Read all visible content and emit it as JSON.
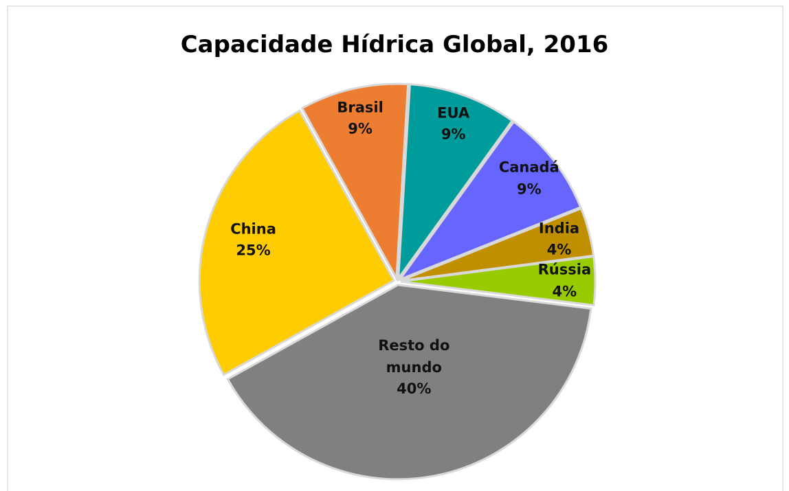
{
  "chart_data": {
    "type": "pie",
    "title": "Capacidade Hídrica Global, 2016",
    "categories": [
      "Brasil",
      "EUA",
      "Canadá",
      "India",
      "Rússia",
      "Resto do mundo",
      "China"
    ],
    "values": [
      9,
      9,
      9,
      4,
      4,
      40,
      25
    ],
    "value_labels": [
      "9%",
      "9%",
      "9%",
      "4%",
      "4%",
      "40%",
      "25%"
    ],
    "colors": [
      "#ED7D31",
      "#009B9B",
      "#6666FF",
      "#BF8F00",
      "#99CC00",
      "#808080",
      "#FFCC00"
    ]
  }
}
